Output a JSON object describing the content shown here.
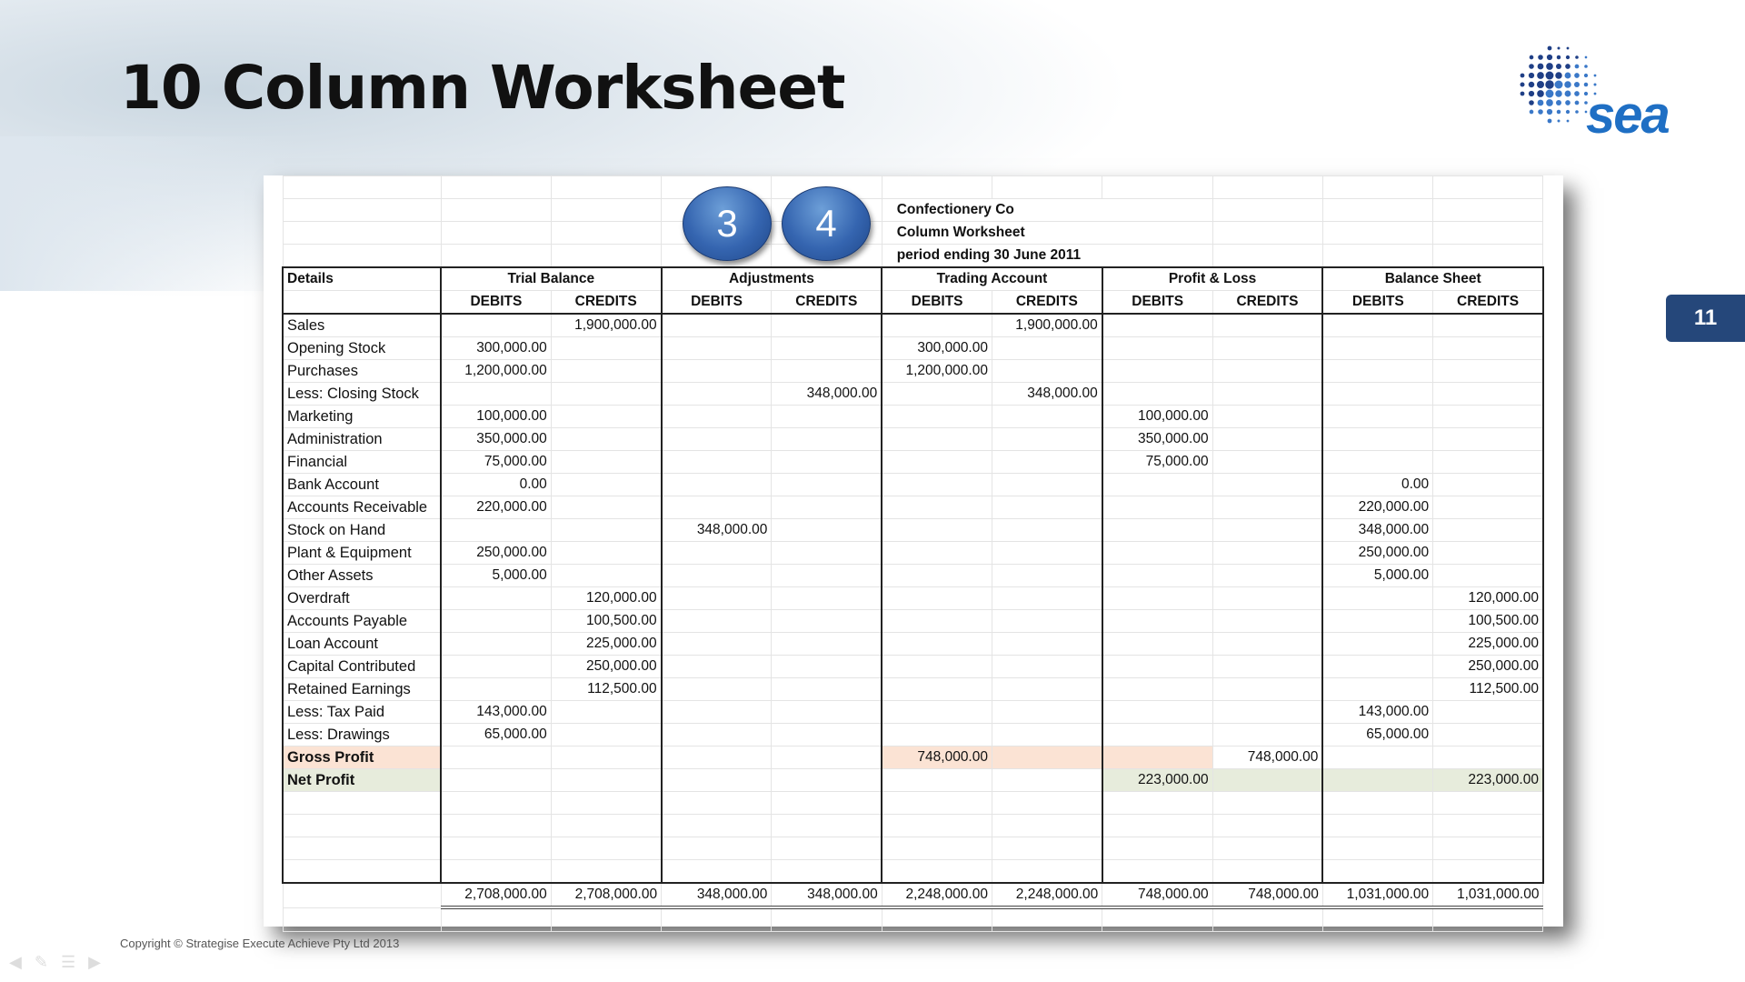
{
  "slide": {
    "title": "10 Column Worksheet",
    "number": "11",
    "copyright": "Copyright © Strategise Execute Achieve Pty Ltd 2013",
    "logo_text": "sea"
  },
  "sheet": {
    "company": "Confectionery Co",
    "subtitle": "Column Worksheet",
    "period": "period ending 30 June 2011",
    "details_header": "Details",
    "groups": [
      "Trial Balance",
      "Adjustments",
      "Trading Account",
      "Profit & Loss",
      "Balance Sheet"
    ],
    "debit_label": "DEBITS",
    "credit_label": "CREDITS",
    "rows": [
      [
        "Sales",
        "",
        "1,900,000.00",
        "",
        "",
        "",
        "1,900,000.00",
        "",
        "",
        "",
        ""
      ],
      [
        "Opening Stock",
        "300,000.00",
        "",
        "",
        "",
        "300,000.00",
        "",
        "",
        "",
        "",
        ""
      ],
      [
        "Purchases",
        "1,200,000.00",
        "",
        "",
        "",
        "1,200,000.00",
        "",
        "",
        "",
        "",
        ""
      ],
      [
        "Less: Closing Stock",
        "",
        "",
        "",
        "348,000.00",
        "",
        "348,000.00",
        "",
        "",
        "",
        ""
      ],
      [
        "Marketing",
        "100,000.00",
        "",
        "",
        "",
        "",
        "",
        "100,000.00",
        "",
        "",
        ""
      ],
      [
        "Administration",
        "350,000.00",
        "",
        "",
        "",
        "",
        "",
        "350,000.00",
        "",
        "",
        ""
      ],
      [
        "Financial",
        "75,000.00",
        "",
        "",
        "",
        "",
        "",
        "75,000.00",
        "",
        "",
        ""
      ],
      [
        "Bank Account",
        "0.00",
        "",
        "",
        "",
        "",
        "",
        "",
        "",
        "0.00",
        ""
      ],
      [
        "Accounts Receivable",
        "220,000.00",
        "",
        "",
        "",
        "",
        "",
        "",
        "",
        "220,000.00",
        ""
      ],
      [
        "Stock on Hand",
        "",
        "",
        "348,000.00",
        "",
        "",
        "",
        "",
        "",
        "348,000.00",
        ""
      ],
      [
        "Plant & Equipment",
        "250,000.00",
        "",
        "",
        "",
        "",
        "",
        "",
        "",
        "250,000.00",
        ""
      ],
      [
        "Other Assets",
        "5,000.00",
        "",
        "",
        "",
        "",
        "",
        "",
        "",
        "5,000.00",
        ""
      ],
      [
        "Overdraft",
        "",
        "120,000.00",
        "",
        "",
        "",
        "",
        "",
        "",
        "",
        "120,000.00"
      ],
      [
        "Accounts Payable",
        "",
        "100,500.00",
        "",
        "",
        "",
        "",
        "",
        "",
        "",
        "100,500.00"
      ],
      [
        "Loan Account",
        "",
        "225,000.00",
        "",
        "",
        "",
        "",
        "",
        "",
        "",
        "225,000.00"
      ],
      [
        "Capital Contributed",
        "",
        "250,000.00",
        "",
        "",
        "",
        "",
        "",
        "",
        "",
        "250,000.00"
      ],
      [
        "Retained Earnings",
        "",
        "112,500.00",
        "",
        "",
        "",
        "",
        "",
        "",
        "",
        "112,500.00"
      ],
      [
        "Less: Tax Paid",
        "143,000.00",
        "",
        "",
        "",
        "",
        "",
        "",
        "",
        "143,000.00",
        ""
      ],
      [
        "Less: Drawings",
        "65,000.00",
        "",
        "",
        "",
        "",
        "",
        "",
        "",
        "65,000.00",
        ""
      ],
      [
        "Gross Profit",
        "",
        "",
        "",
        "",
        "748,000.00",
        "",
        "",
        "748,000.00",
        "",
        ""
      ],
      [
        "Net Profit",
        "",
        "",
        "",
        "",
        "",
        "",
        "223,000.00",
        "",
        "",
        "223,000.00"
      ]
    ],
    "totals": [
      "2,708,000.00",
      "2,708,000.00",
      "348,000.00",
      "348,000.00",
      "2,248,000.00",
      "2,248,000.00",
      "748,000.00",
      "748,000.00",
      "1,031,000.00",
      "1,031,000.00"
    ]
  },
  "annotations": [
    "3",
    "4"
  ],
  "colors": {
    "accent": "#25477a",
    "gross_profit_fill": "#fbe3d4",
    "net_profit_fill": "#e7ecdc",
    "circle": "#3565b0"
  }
}
